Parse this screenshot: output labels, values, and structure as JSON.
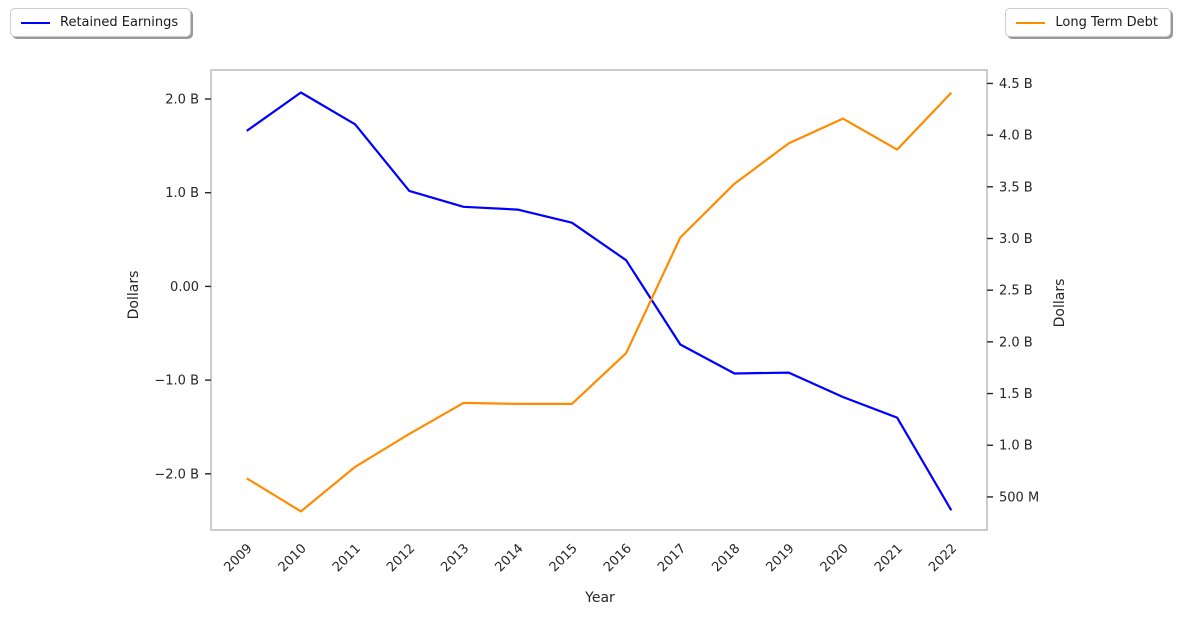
{
  "figure": {
    "background": "#ffffff",
    "spine_color": "#cccccc",
    "tick_color": "#262626",
    "text_color": "#262626"
  },
  "chart_data": {
    "type": "line",
    "x": [
      "2009",
      "2010",
      "2011",
      "2012",
      "2013",
      "2014",
      "2015",
      "2016",
      "2017",
      "2018",
      "2019",
      "2020",
      "2021",
      "2022"
    ],
    "xlabel": "Year",
    "grid": false,
    "series": [
      {
        "name": "Retained Earnings",
        "color": "#0000ff",
        "axis": "left",
        "values_billions": [
          1.66,
          2.07,
          1.73,
          1.02,
          0.85,
          0.82,
          0.68,
          0.28,
          -0.62,
          -0.93,
          -0.92,
          -1.18,
          -1.4,
          -2.39
        ]
      },
      {
        "name": "Long Term Debt",
        "color": "#ff8c00",
        "axis": "right",
        "values_billions": [
          0.68,
          0.36,
          0.79,
          1.11,
          1.41,
          1.4,
          1.4,
          1.89,
          3.01,
          3.53,
          3.92,
          4.16,
          3.86,
          4.41
        ]
      }
    ],
    "left_axis": {
      "label": "Dollars",
      "ylim": [
        -2.6,
        2.31
      ],
      "ticks": [
        {
          "value": 2.0,
          "label": "2.0 B"
        },
        {
          "value": 1.0,
          "label": "1.0 B"
        },
        {
          "value": 0.0,
          "label": "0.00"
        },
        {
          "value": -1.0,
          "label": "−1.0 B"
        },
        {
          "value": -2.0,
          "label": "−2.0 B"
        }
      ]
    },
    "right_axis": {
      "label": "Dollars",
      "ylim": [
        0.18,
        4.63
      ],
      "ticks": [
        {
          "value": 4.5,
          "label": "4.5 B"
        },
        {
          "value": 4.0,
          "label": "4.0 B"
        },
        {
          "value": 3.5,
          "label": "3.5 B"
        },
        {
          "value": 3.0,
          "label": "3.0 B"
        },
        {
          "value": 2.5,
          "label": "2.5 B"
        },
        {
          "value": 2.0,
          "label": "2.0 B"
        },
        {
          "value": 1.5,
          "label": "1.5 B"
        },
        {
          "value": 1.0,
          "label": "1.0 B"
        },
        {
          "value": 0.5,
          "label": "500 M"
        }
      ]
    },
    "legend_positions": [
      "upper left",
      "upper right"
    ]
  }
}
